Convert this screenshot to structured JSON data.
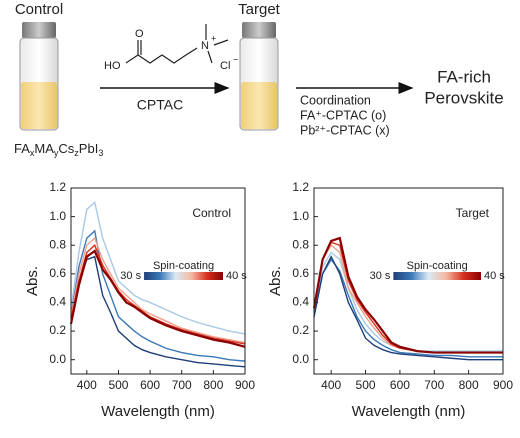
{
  "schematic": {
    "control_label": "Control",
    "target_label": "Target",
    "formula": [
      "FA",
      "x",
      "MA",
      "y",
      "Cs",
      "z",
      "PbI",
      "3"
    ],
    "molecule": {
      "ho": "HO",
      "o": "O",
      "n": "N",
      "n_charge": "+",
      "cl": "Cl",
      "cl_charge": "−"
    },
    "reagent": "CPTAC",
    "coordination": [
      "Coordination",
      "FA⁺-CPTAC (o)",
      "Pb²⁺-CPTAC (x)"
    ],
    "product": [
      "FA-rich",
      "Perovskite"
    ]
  },
  "chart_data": [
    {
      "type": "line",
      "annotation": "Control",
      "x_label": "Wavelength (nm)",
      "y_label": "Abs.",
      "xlim": [
        350,
        900
      ],
      "xticks": [
        400,
        500,
        600,
        700,
        800,
        900
      ],
      "ylim": [
        -0.1,
        1.2
      ],
      "yticks": [
        {
          "value": 0,
          "label": "0.0"
        },
        {
          "value": 0.2,
          "label": "0.2"
        },
        {
          "value": 0.4,
          "label": "0.4"
        },
        {
          "value": 0.6,
          "label": "0.6"
        },
        {
          "value": 0.8,
          "label": "0.8"
        },
        {
          "value": 1.0,
          "label": "1.0"
        },
        {
          "value": 1.2,
          "label": "1.2"
        }
      ],
      "colorbar": {
        "label": "Spin-coating",
        "ticks": [
          "30 s",
          "40 s"
        ],
        "colors": [
          "#1f3f7a",
          "#3a78b8",
          "#dbe9f5",
          "#f4b9a3",
          "#d7301f",
          "#8b0000"
        ]
      },
      "x": [
        350,
        375,
        400,
        425,
        450,
        475,
        500,
        525,
        550,
        575,
        600,
        650,
        700,
        750,
        800,
        850,
        900
      ],
      "series": [
        {
          "color": "#a9c9e6",
          "values": [
            0.35,
            0.75,
            1.05,
            1.1,
            0.85,
            0.7,
            0.55,
            0.5,
            0.45,
            0.42,
            0.4,
            0.35,
            0.3,
            0.26,
            0.23,
            0.2,
            0.18
          ]
        },
        {
          "color": "#3a78b8",
          "values": [
            0.3,
            0.65,
            0.85,
            0.9,
            0.6,
            0.45,
            0.3,
            0.25,
            0.2,
            0.16,
            0.13,
            0.08,
            0.05,
            0.03,
            0.02,
            0.0,
            -0.01
          ]
        },
        {
          "color": "#1f3f7a",
          "values": [
            0.25,
            0.55,
            0.7,
            0.72,
            0.45,
            0.33,
            0.2,
            0.15,
            0.1,
            0.07,
            0.05,
            0.02,
            0.0,
            -0.02,
            -0.03,
            -0.04,
            -0.05
          ]
        },
        {
          "color": "#f0a08a",
          "values": [
            0.3,
            0.6,
            0.8,
            0.85,
            0.7,
            0.6,
            0.5,
            0.45,
            0.4,
            0.35,
            0.32,
            0.27,
            0.22,
            0.19,
            0.16,
            0.14,
            0.12
          ]
        },
        {
          "color": "#d7301f",
          "values": [
            0.28,
            0.55,
            0.75,
            0.8,
            0.66,
            0.57,
            0.48,
            0.42,
            0.38,
            0.34,
            0.3,
            0.25,
            0.21,
            0.18,
            0.15,
            0.13,
            0.11
          ]
        },
        {
          "color": "#8b0000",
          "values": [
            0.25,
            0.52,
            0.72,
            0.76,
            0.63,
            0.56,
            0.47,
            0.4,
            0.37,
            0.33,
            0.29,
            0.24,
            0.2,
            0.17,
            0.14,
            0.12,
            0.09
          ]
        }
      ]
    },
    {
      "type": "line",
      "annotation": "Target",
      "x_label": "Wavelength (nm)",
      "y_label": "Abs.",
      "xlim": [
        350,
        900
      ],
      "xticks": [
        400,
        500,
        600,
        700,
        800,
        900
      ],
      "ylim": [
        -0.1,
        1.2
      ],
      "yticks": [
        {
          "value": 0,
          "label": "0.0"
        },
        {
          "value": 0.2,
          "label": "0.2"
        },
        {
          "value": 0.4,
          "label": "0.4"
        },
        {
          "value": 0.6,
          "label": "0.6"
        },
        {
          "value": 0.8,
          "label": "0.8"
        },
        {
          "value": 1.0,
          "label": "1.0"
        },
        {
          "value": 1.2,
          "label": "1.2"
        }
      ],
      "colorbar": {
        "label": "Spin-coating",
        "ticks": [
          "30 s",
          "40 s"
        ],
        "colors": [
          "#1f3f7a",
          "#3a78b8",
          "#dbe9f5",
          "#f4b9a3",
          "#d7301f",
          "#8b0000"
        ]
      },
      "x": [
        350,
        375,
        400,
        425,
        450,
        475,
        500,
        525,
        550,
        575,
        600,
        650,
        700,
        750,
        800,
        850,
        900
      ],
      "series": [
        {
          "color": "#a9c9e6",
          "values": [
            0.35,
            0.65,
            0.75,
            0.7,
            0.5,
            0.35,
            0.25,
            0.18,
            0.13,
            0.1,
            0.08,
            0.06,
            0.06,
            0.06,
            0.06,
            0.06,
            0.06
          ]
        },
        {
          "color": "#3a78b8",
          "values": [
            0.3,
            0.6,
            0.7,
            0.62,
            0.45,
            0.3,
            0.2,
            0.14,
            0.1,
            0.07,
            0.05,
            0.04,
            0.03,
            0.03,
            0.02,
            0.02,
            0.02
          ]
        },
        {
          "color": "#1f3f7a",
          "values": [
            0.3,
            0.6,
            0.72,
            0.6,
            0.4,
            0.28,
            0.15,
            0.1,
            0.07,
            0.05,
            0.04,
            0.03,
            0.02,
            0.01,
            0.0,
            0.0,
            0.0
          ]
        },
        {
          "color": "#f0a08a",
          "values": [
            0.35,
            0.7,
            0.8,
            0.75,
            0.5,
            0.4,
            0.3,
            0.22,
            0.15,
            0.1,
            0.08,
            0.06,
            0.05,
            0.05,
            0.05,
            0.05,
            0.05
          ]
        },
        {
          "color": "#d7301f",
          "values": [
            0.35,
            0.7,
            0.82,
            0.8,
            0.55,
            0.42,
            0.33,
            0.25,
            0.17,
            0.11,
            0.08,
            0.06,
            0.05,
            0.05,
            0.05,
            0.05,
            0.05
          ]
        },
        {
          "color": "#8b0000",
          "values": [
            0.36,
            0.7,
            0.83,
            0.85,
            0.58,
            0.44,
            0.35,
            0.28,
            0.2,
            0.12,
            0.09,
            0.06,
            0.05,
            0.05,
            0.05,
            0.05,
            0.05
          ]
        }
      ]
    }
  ]
}
